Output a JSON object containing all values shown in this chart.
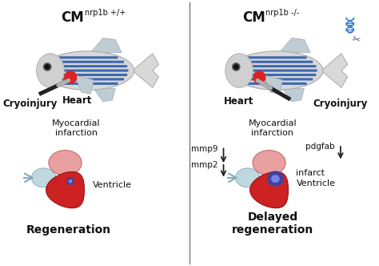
{
  "title_left": "CM",
  "title_left_super": "nrp1b +/+",
  "title_right": "CM",
  "title_right_super": "nrp1b -/-",
  "label_heart_left": "Heart",
  "label_heart_right": "Heart",
  "label_cryoinjury_left": "Cryoinjury",
  "label_cryoinjury_right": "Cryoinjury",
  "label_myocardial": "Myocardial\ninfarction",
  "label_ventricle_left": "Ventricle",
  "label_ventricle_right": "Ventricle",
  "label_infarct": "infarct",
  "label_regen_left": "Regeneration",
  "label_regen_right": "Delayed\nregeneration",
  "label_mmp9": "mmp9",
  "label_mmp2": "mmp2",
  "label_pdgfab": "pdgfab",
  "bg_color": "#ffffff",
  "divider_color": "#777777",
  "fish_body_color": "#d8d8d8",
  "fish_body_edge": "#aaaaaa",
  "fish_stripe_color": "#2255aa",
  "fish_fin_color": "#c0ccd4",
  "fish_fin_edge": "#9aabb5",
  "heart_red": "#cc2222",
  "heart_pink": "#e8a0a0",
  "atrium_blue": "#b8d4dc",
  "infarct_blue": "#3344aa",
  "infarct_glow": "#7788ee",
  "probe_black": "#222222",
  "probe_silver": "#b0b0b0",
  "probe_tip": "#cccccc",
  "arrow_color": "#222222",
  "dna_color1": "#3388cc",
  "dna_color2": "#3388cc",
  "scissors_color": "#555577",
  "title_fontsize": 11,
  "super_fontsize": 7,
  "label_fontsize": 8,
  "bold_label_fontsize": 9,
  "text_color": "#111111"
}
